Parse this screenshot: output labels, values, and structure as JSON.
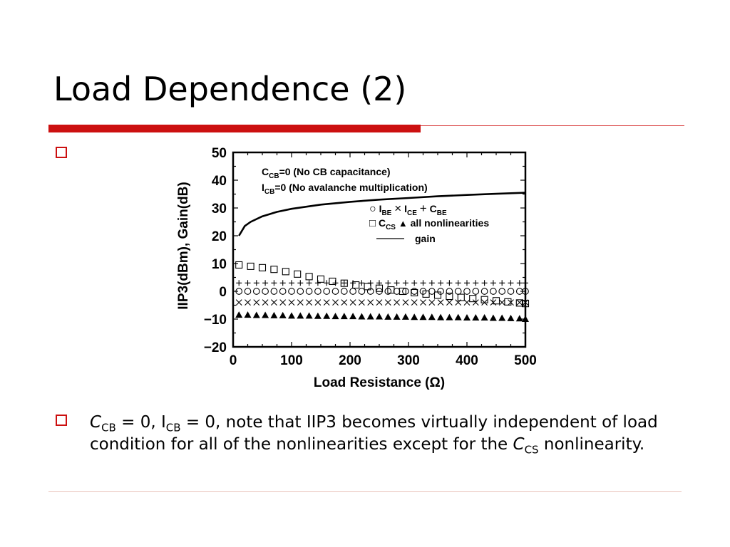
{
  "slide": {
    "title": "Load Dependence (2)",
    "body": {
      "c_sym": "C",
      "c_sub": "CB",
      "t1": " = 0, I",
      "i_sub": "CB",
      "t2": " = 0, note that IIP3 becomes virtually independent of load condition for all of the nonlinearities except for the ",
      "cs_sym": "C",
      "cs_sub": "CS",
      "t3": " nonlinearity."
    }
  },
  "chart_data": {
    "type": "line",
    "xlabel": "Load Resistance (Ω)",
    "ylabel": "IIP3(dBm), Gain(dB)",
    "xlim": [
      0,
      500
    ],
    "ylim": [
      -20,
      50
    ],
    "xticks": [
      0,
      100,
      200,
      300,
      400,
      500
    ],
    "yticks": [
      50,
      40,
      30,
      20,
      10,
      0,
      -10,
      -20
    ],
    "ytick_labels": [
      "50",
      "40",
      "30",
      "20",
      "10",
      "0",
      "−10",
      "−20"
    ],
    "annotations": [
      {
        "main": "C",
        "sub": "CB",
        "rest": "=0 (No CB capacitance)"
      },
      {
        "main": "I",
        "sub": "CB",
        "rest": "=0 (No avalanche multiplication)"
      }
    ],
    "legend": {
      "placement": "top-right",
      "row1": {
        "a_sym": "○",
        "a_main": "I",
        "a_sub": "BE",
        "b_sym": "×",
        "b_main": "I",
        "b_sub": "CE",
        "c_sym": "+",
        "c_main": "C",
        "c_sub": "BE"
      },
      "row2": {
        "a_sym": "□",
        "a_main": "C",
        "a_sub": "CS",
        "b_sym": "▲",
        "b_text": "all nonlinearities"
      },
      "row3": {
        "text": "gain"
      }
    },
    "series": [
      {
        "name": "gain",
        "marker": "line",
        "x": [
          10,
          20,
          30,
          50,
          75,
          100,
          150,
          200,
          250,
          300,
          350,
          400,
          450,
          500
        ],
        "y": [
          20,
          23.5,
          25,
          27,
          28.6,
          29.7,
          31.2,
          32.2,
          33,
          33.6,
          34.2,
          34.7,
          35.1,
          35.5
        ]
      },
      {
        "name": "IBE",
        "marker": "circle",
        "x": [
          10,
          25,
          40,
          55,
          70,
          85,
          100,
          115,
          130,
          145,
          160,
          175,
          190,
          205,
          220,
          235,
          250,
          265,
          280,
          295,
          310,
          325,
          340,
          355,
          370,
          385,
          400,
          415,
          430,
          445,
          460,
          475,
          490,
          500
        ],
        "y": [
          0,
          0,
          0,
          0,
          0,
          0,
          0,
          0,
          0,
          0,
          0,
          0,
          0,
          0,
          0,
          0,
          0,
          0,
          0,
          0,
          0,
          0,
          0,
          0,
          0,
          0,
          0,
          0,
          0,
          0,
          0,
          0,
          0,
          0
        ]
      },
      {
        "name": "ICE",
        "marker": "x",
        "x": [
          10,
          25,
          40,
          55,
          70,
          85,
          100,
          115,
          130,
          145,
          160,
          175,
          190,
          205,
          220,
          235,
          250,
          265,
          280,
          295,
          310,
          325,
          340,
          355,
          370,
          385,
          400,
          415,
          430,
          445,
          460,
          475,
          490,
          500
        ],
        "y": [
          -4,
          -4,
          -4,
          -4,
          -4,
          -4,
          -4,
          -4,
          -4,
          -4,
          -4,
          -4,
          -4,
          -4,
          -4,
          -4,
          -4,
          -4,
          -4,
          -4,
          -4,
          -4,
          -4,
          -4,
          -4,
          -4,
          -4,
          -4,
          -4,
          -4,
          -4,
          -4,
          -4,
          -4
        ]
      },
      {
        "name": "CBE",
        "marker": "plus",
        "x": [
          10,
          25,
          40,
          55,
          70,
          85,
          100,
          115,
          130,
          145,
          160,
          175,
          190,
          205,
          220,
          235,
          250,
          265,
          280,
          295,
          310,
          325,
          340,
          355,
          370,
          385,
          400,
          415,
          430,
          445,
          460,
          475,
          490,
          500
        ],
        "y": [
          3,
          3,
          3,
          3,
          3,
          3,
          3,
          3,
          3,
          3,
          3,
          3,
          3,
          3,
          3,
          3,
          3,
          3,
          3,
          3,
          3,
          3,
          3,
          3,
          3,
          3,
          3,
          3,
          3,
          3,
          3,
          3,
          3,
          3
        ]
      },
      {
        "name": "CCS",
        "marker": "square",
        "x": [
          10,
          30,
          50,
          70,
          90,
          110,
          130,
          150,
          170,
          190,
          210,
          230,
          250,
          270,
          290,
          310,
          330,
          350,
          370,
          390,
          410,
          430,
          450,
          470,
          490,
          500
        ],
        "y": [
          9.5,
          9,
          8.5,
          7.9,
          7.1,
          6.2,
          5.3,
          4.4,
          3.6,
          2.9,
          2.3,
          1.7,
          1.1,
          0.5,
          0,
          -0.5,
          -1,
          -1.4,
          -1.8,
          -2.2,
          -2.6,
          -3,
          -3.4,
          -3.8,
          -4.2,
          -4.4
        ]
      },
      {
        "name": "all nonlinearities",
        "marker": "triangle",
        "x": [
          10,
          25,
          40,
          55,
          70,
          85,
          100,
          115,
          130,
          145,
          160,
          175,
          190,
          205,
          220,
          235,
          250,
          265,
          280,
          295,
          310,
          325,
          340,
          355,
          370,
          385,
          400,
          415,
          430,
          445,
          460,
          475,
          490,
          500
        ],
        "y": [
          -8.5,
          -8.5,
          -8.6,
          -8.6,
          -8.7,
          -8.7,
          -8.8,
          -8.8,
          -8.8,
          -8.9,
          -8.9,
          -9,
          -9,
          -9,
          -9.1,
          -9.1,
          -9.1,
          -9.2,
          -9.2,
          -9.2,
          -9.3,
          -9.3,
          -9.3,
          -9.4,
          -9.4,
          -9.4,
          -9.5,
          -9.5,
          -9.5,
          -9.6,
          -9.6,
          -9.7,
          -9.8,
          -10
        ]
      }
    ]
  }
}
